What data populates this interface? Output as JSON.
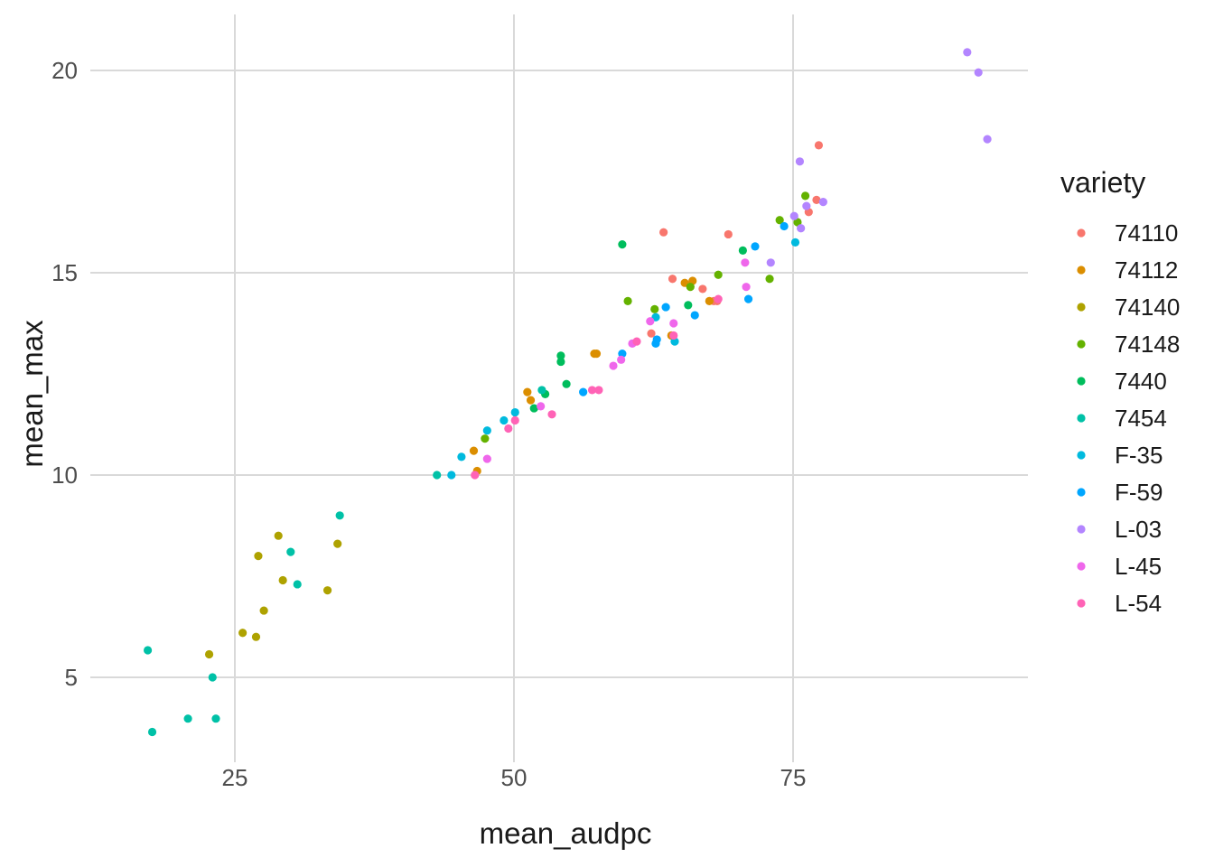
{
  "chart_data": {
    "type": "scatter",
    "xlabel": "mean_audpc",
    "ylabel": "mean_max",
    "xlim": [
      15,
      94
    ],
    "ylim": [
      2.8,
      21.3
    ],
    "x_ticks": [
      25,
      50,
      75
    ],
    "y_ticks": [
      5,
      10,
      15,
      20
    ],
    "grid": true,
    "legend": {
      "title": "variety",
      "position": "right"
    },
    "series": [
      {
        "name": "74110",
        "color": "#F8766D",
        "points": [
          [
            63.4,
            16.0
          ],
          [
            69.2,
            15.95
          ],
          [
            77.3,
            18.15
          ],
          [
            77.1,
            16.8
          ],
          [
            76.4,
            16.5
          ],
          [
            64.2,
            14.85
          ],
          [
            66.9,
            14.6
          ],
          [
            67.9,
            14.3
          ],
          [
            62.3,
            13.5
          ],
          [
            68.2,
            14.3
          ]
        ]
      },
      {
        "name": "74112",
        "color": "#DB8E00",
        "points": [
          [
            51.2,
            12.05
          ],
          [
            51.5,
            11.85
          ],
          [
            57.2,
            13.0
          ],
          [
            57.4,
            13.0
          ],
          [
            46.4,
            10.6
          ],
          [
            46.7,
            10.1
          ],
          [
            64.1,
            13.45
          ],
          [
            65.3,
            14.75
          ],
          [
            66.0,
            14.8
          ],
          [
            67.5,
            14.3
          ]
        ]
      },
      {
        "name": "74140",
        "color": "#AEA200",
        "points": [
          [
            22.7,
            5.57
          ],
          [
            25.7,
            6.1
          ],
          [
            26.9,
            6.0
          ],
          [
            27.1,
            8.0
          ],
          [
            27.6,
            6.65
          ],
          [
            28.9,
            8.5
          ],
          [
            29.3,
            7.4
          ],
          [
            33.3,
            7.15
          ],
          [
            34.2,
            8.3
          ]
        ]
      },
      {
        "name": "74148",
        "color": "#64B200",
        "points": [
          [
            60.2,
            14.3
          ],
          [
            62.6,
            14.1
          ],
          [
            65.8,
            14.65
          ],
          [
            68.3,
            14.95
          ],
          [
            72.9,
            14.85
          ],
          [
            73.8,
            16.3
          ],
          [
            75.4,
            16.25
          ],
          [
            76.1,
            16.9
          ],
          [
            47.4,
            10.9
          ]
        ]
      },
      {
        "name": "7440",
        "color": "#00BD5C",
        "points": [
          [
            59.7,
            15.7
          ],
          [
            70.5,
            15.55
          ],
          [
            65.6,
            14.2
          ],
          [
            54.2,
            12.95
          ],
          [
            54.2,
            12.8
          ],
          [
            54.7,
            12.25
          ],
          [
            52.8,
            12.0
          ],
          [
            51.8,
            11.65
          ]
        ]
      },
      {
        "name": "7454",
        "color": "#00C1A7",
        "points": [
          [
            17.2,
            5.67
          ],
          [
            17.6,
            3.65
          ],
          [
            20.8,
            3.98
          ],
          [
            23.0,
            5.0
          ],
          [
            23.3,
            3.98
          ],
          [
            30.0,
            8.1
          ],
          [
            30.6,
            7.3
          ],
          [
            34.4,
            9.0
          ],
          [
            43.1,
            10.0
          ],
          [
            52.5,
            12.1
          ]
        ]
      },
      {
        "name": "F-35",
        "color": "#00BADE",
        "points": [
          [
            44.4,
            10.0
          ],
          [
            45.3,
            10.45
          ],
          [
            47.6,
            11.1
          ],
          [
            49.1,
            11.35
          ],
          [
            50.1,
            11.55
          ],
          [
            62.7,
            13.9
          ],
          [
            64.4,
            13.3
          ],
          [
            75.2,
            15.75
          ]
        ]
      },
      {
        "name": "F-59",
        "color": "#00A6FF",
        "points": [
          [
            56.2,
            12.05
          ],
          [
            59.7,
            13.0
          ],
          [
            62.7,
            13.25
          ],
          [
            62.8,
            13.35
          ],
          [
            63.6,
            14.15
          ],
          [
            66.2,
            13.95
          ],
          [
            71.0,
            14.35
          ],
          [
            71.6,
            15.65
          ],
          [
            74.2,
            16.15
          ]
        ]
      },
      {
        "name": "L-03",
        "color": "#B385FF",
        "points": [
          [
            90.6,
            20.45
          ],
          [
            91.6,
            19.95
          ],
          [
            92.4,
            18.3
          ],
          [
            75.6,
            17.75
          ],
          [
            75.1,
            16.4
          ],
          [
            75.7,
            16.1
          ],
          [
            76.2,
            16.65
          ],
          [
            77.7,
            16.75
          ],
          [
            73.0,
            15.25
          ]
        ]
      },
      {
        "name": "L-45",
        "color": "#EF67EB",
        "points": [
          [
            52.4,
            11.7
          ],
          [
            58.9,
            12.7
          ],
          [
            59.6,
            12.85
          ],
          [
            60.6,
            13.25
          ],
          [
            62.2,
            13.8
          ],
          [
            64.3,
            13.75
          ],
          [
            70.7,
            15.25
          ],
          [
            70.8,
            14.65
          ],
          [
            47.6,
            10.4
          ]
        ]
      },
      {
        "name": "L-54",
        "color": "#FF63B6",
        "points": [
          [
            46.5,
            10.0
          ],
          [
            49.5,
            11.15
          ],
          [
            50.1,
            11.35
          ],
          [
            53.4,
            11.5
          ],
          [
            57.0,
            12.1
          ],
          [
            57.6,
            12.1
          ],
          [
            61.0,
            13.3
          ],
          [
            64.3,
            13.45
          ],
          [
            68.3,
            14.35
          ]
        ]
      }
    ]
  }
}
